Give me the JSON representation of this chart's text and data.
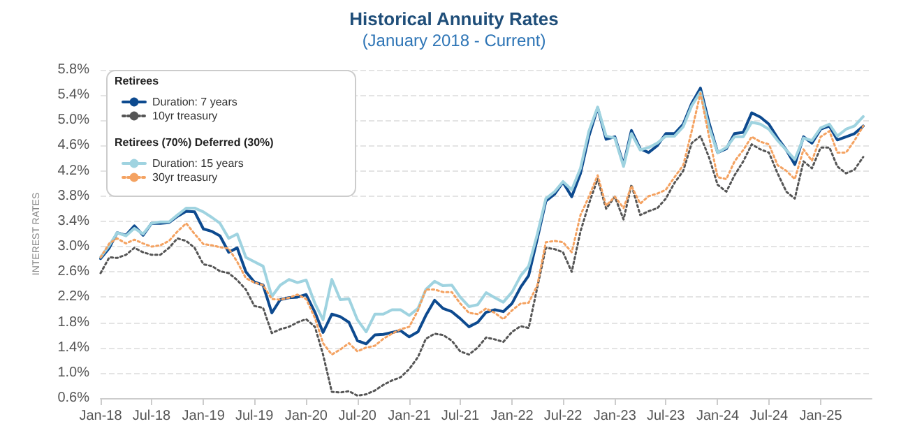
{
  "chart_data": {
    "type": "line",
    "title": "Historical Annuity Rates",
    "subtitle": "(January 2018 - Current)",
    "ylabel": "INTEREST RATES",
    "annotations": [
      "Retirees",
      "Retirees (70%) Deferred (30%)"
    ],
    "x": [
      "2018-01",
      "2018-02",
      "2018-03",
      "2018-04",
      "2018-05",
      "2018-06",
      "2018-07",
      "2018-08",
      "2018-09",
      "2018-10",
      "2018-11",
      "2018-12",
      "2019-01",
      "2019-02",
      "2019-03",
      "2019-04",
      "2019-05",
      "2019-06",
      "2019-07",
      "2019-08",
      "2019-09",
      "2019-10",
      "2019-11",
      "2019-12",
      "2020-01",
      "2020-02",
      "2020-03",
      "2020-04",
      "2020-05",
      "2020-06",
      "2020-07",
      "2020-08",
      "2020-09",
      "2020-10",
      "2020-11",
      "2020-12",
      "2021-01",
      "2021-02",
      "2021-03",
      "2021-04",
      "2021-05",
      "2021-06",
      "2021-07",
      "2021-08",
      "2021-09",
      "2021-10",
      "2021-11",
      "2021-12",
      "2022-01",
      "2022-02",
      "2022-03",
      "2022-04",
      "2022-05",
      "2022-06",
      "2022-07",
      "2022-08",
      "2022-09",
      "2022-10",
      "2022-11",
      "2022-12",
      "2023-01",
      "2023-02",
      "2023-03",
      "2023-04",
      "2023-05",
      "2023-06",
      "2023-07",
      "2023-08",
      "2023-09",
      "2023-10",
      "2023-11",
      "2023-12",
      "2024-01",
      "2024-02",
      "2024-03",
      "2024-04",
      "2024-05",
      "2024-06",
      "2024-07",
      "2024-08",
      "2024-09",
      "2024-10",
      "2024-11",
      "2024-12",
      "2025-01",
      "2025-02",
      "2025-03",
      "2025-04",
      "2025-05",
      "2025-06"
    ],
    "xlim": [
      "2018-01",
      "2025-07"
    ],
    "xticks": [
      {
        "value": "2018-01",
        "label": "Jan-18"
      },
      {
        "value": "2018-07",
        "label": "Jul-18"
      },
      {
        "value": "2019-01",
        "label": "Jan-19"
      },
      {
        "value": "2019-07",
        "label": "Jul-19"
      },
      {
        "value": "2020-01",
        "label": "Jan-20"
      },
      {
        "value": "2020-07",
        "label": "Jul-20"
      },
      {
        "value": "2021-01",
        "label": "Jan-21"
      },
      {
        "value": "2021-07",
        "label": "Jul-21"
      },
      {
        "value": "2022-01",
        "label": "Jan-22"
      },
      {
        "value": "2022-07",
        "label": "Jul-22"
      },
      {
        "value": "2023-01",
        "label": "Jan-23"
      },
      {
        "value": "2023-07",
        "label": "Jul-23"
      },
      {
        "value": "2024-01",
        "label": "Jan-24"
      },
      {
        "value": "2024-07",
        "label": "Jul-24"
      },
      {
        "value": "2025-01",
        "label": "Jan-25"
      }
    ],
    "ylim": [
      0.6,
      5.8
    ],
    "yticks": [
      {
        "value": 0.6,
        "label": "0.6%"
      },
      {
        "value": 1.0,
        "label": "1.0%"
      },
      {
        "value": 1.4,
        "label": "1.4%"
      },
      {
        "value": 1.8,
        "label": "1.8%"
      },
      {
        "value": 2.2,
        "label": "2.2%"
      },
      {
        "value": 2.6,
        "label": "2.6%"
      },
      {
        "value": 3.0,
        "label": "3.0%"
      },
      {
        "value": 3.4,
        "label": "3.4%"
      },
      {
        "value": 3.8,
        "label": "3.8%"
      },
      {
        "value": 4.2,
        "label": "4.2%"
      },
      {
        "value": 4.6,
        "label": "4.6%"
      },
      {
        "value": 5.0,
        "label": "5.0%"
      },
      {
        "value": 5.4,
        "label": "5.4%"
      },
      {
        "value": 5.8,
        "label": "5.8%"
      }
    ],
    "grid": "y",
    "legend": "top left",
    "series": [
      {
        "name": "Duration: 7 years",
        "color": "#0d4a8f",
        "line_style": "solid",
        "values": [
          2.81,
          2.98,
          3.22,
          3.18,
          3.33,
          3.18,
          3.37,
          3.37,
          3.38,
          3.48,
          3.56,
          3.55,
          3.28,
          3.24,
          3.17,
          2.91,
          2.98,
          2.6,
          2.44,
          2.39,
          1.95,
          2.16,
          2.19,
          2.2,
          2.24,
          1.96,
          1.64,
          1.93,
          1.89,
          1.8,
          1.51,
          1.46,
          1.6,
          1.61,
          1.64,
          1.67,
          1.57,
          1.65,
          1.91,
          2.15,
          2.02,
          1.97,
          1.86,
          1.73,
          1.8,
          1.96,
          2.0,
          1.97,
          2.1,
          2.36,
          2.54,
          3.13,
          3.72,
          3.83,
          4.02,
          3.79,
          4.16,
          4.75,
          5.2,
          4.7,
          4.74,
          4.3,
          4.84,
          4.55,
          4.49,
          4.6,
          4.79,
          4.79,
          4.94,
          5.27,
          5.51,
          4.97,
          4.49,
          4.55,
          4.79,
          4.81,
          5.12,
          5.05,
          4.94,
          4.72,
          4.53,
          4.3,
          4.74,
          4.64,
          4.86,
          4.91,
          4.69,
          4.74,
          4.79,
          4.91
        ]
      },
      {
        "name": "10yr treasury",
        "color": "#555555",
        "line_style": "dotted",
        "values": [
          2.58,
          2.83,
          2.82,
          2.87,
          2.98,
          2.91,
          2.87,
          2.87,
          2.98,
          3.13,
          3.09,
          2.98,
          2.72,
          2.69,
          2.61,
          2.58,
          2.47,
          2.32,
          2.06,
          2.03,
          1.63,
          1.69,
          1.73,
          1.8,
          1.85,
          1.73,
          1.29,
          0.7,
          0.69,
          0.71,
          0.64,
          0.66,
          0.72,
          0.81,
          0.88,
          0.93,
          1.06,
          1.25,
          1.54,
          1.62,
          1.6,
          1.51,
          1.34,
          1.29,
          1.4,
          1.56,
          1.53,
          1.49,
          1.65,
          1.74,
          1.71,
          2.36,
          2.98,
          2.96,
          2.91,
          2.6,
          3.24,
          3.68,
          4.07,
          3.6,
          3.79,
          3.43,
          3.98,
          3.5,
          3.56,
          3.61,
          3.76,
          4.01,
          4.2,
          4.64,
          4.75,
          4.42,
          3.98,
          3.87,
          4.13,
          4.35,
          4.62,
          4.54,
          4.49,
          4.16,
          3.87,
          3.76,
          4.35,
          4.24,
          4.57,
          4.57,
          4.27,
          4.16,
          4.22,
          4.42
        ]
      },
      {
        "name": "Duration: 15 years",
        "color": "#9fd3e0",
        "line_style": "solid",
        "values": [
          2.83,
          3.02,
          3.22,
          3.17,
          3.29,
          3.2,
          3.37,
          3.39,
          3.39,
          3.5,
          3.61,
          3.61,
          3.55,
          3.46,
          3.37,
          3.13,
          3.2,
          2.83,
          2.76,
          2.69,
          2.21,
          2.39,
          2.48,
          2.43,
          2.47,
          2.1,
          1.84,
          2.48,
          2.16,
          2.17,
          1.84,
          1.65,
          1.93,
          1.93,
          2.0,
          2.0,
          1.91,
          2.02,
          2.32,
          2.45,
          2.38,
          2.39,
          2.2,
          2.05,
          2.08,
          2.27,
          2.19,
          2.12,
          2.28,
          2.54,
          2.69,
          3.2,
          3.76,
          3.87,
          4.03,
          3.9,
          4.24,
          4.83,
          5.21,
          4.75,
          4.72,
          4.27,
          4.79,
          4.53,
          4.57,
          4.64,
          4.75,
          4.75,
          4.9,
          5.23,
          5.45,
          4.9,
          4.49,
          4.57,
          4.74,
          4.74,
          4.97,
          4.94,
          4.86,
          4.68,
          4.53,
          4.38,
          4.72,
          4.68,
          4.88,
          4.94,
          4.75,
          4.86,
          4.91,
          5.06
        ]
      },
      {
        "name": "30yr treasury",
        "color": "#f4a261",
        "line_style": "dotted",
        "values": [
          2.83,
          3.05,
          3.13,
          3.05,
          3.11,
          3.05,
          3.0,
          3.02,
          3.09,
          3.24,
          3.37,
          3.2,
          3.04,
          3.02,
          2.99,
          2.97,
          2.76,
          2.5,
          2.43,
          2.39,
          2.17,
          2.16,
          2.19,
          2.24,
          2.17,
          1.87,
          1.47,
          1.29,
          1.37,
          1.47,
          1.34,
          1.4,
          1.43,
          1.54,
          1.62,
          1.69,
          1.73,
          1.99,
          2.32,
          2.32,
          2.28,
          2.28,
          2.1,
          1.95,
          1.93,
          2.02,
          1.95,
          1.85,
          1.99,
          2.1,
          2.11,
          2.39,
          3.07,
          3.09,
          3.07,
          2.91,
          3.5,
          3.79,
          4.13,
          3.65,
          3.79,
          3.61,
          3.96,
          3.68,
          3.8,
          3.84,
          3.9,
          4.1,
          4.29,
          4.83,
          5.43,
          4.75,
          4.1,
          4.07,
          4.35,
          4.53,
          4.74,
          4.66,
          4.62,
          4.29,
          4.2,
          4.07,
          4.54,
          4.36,
          4.74,
          4.83,
          4.49,
          4.49,
          4.68,
          4.91
        ]
      }
    ]
  }
}
